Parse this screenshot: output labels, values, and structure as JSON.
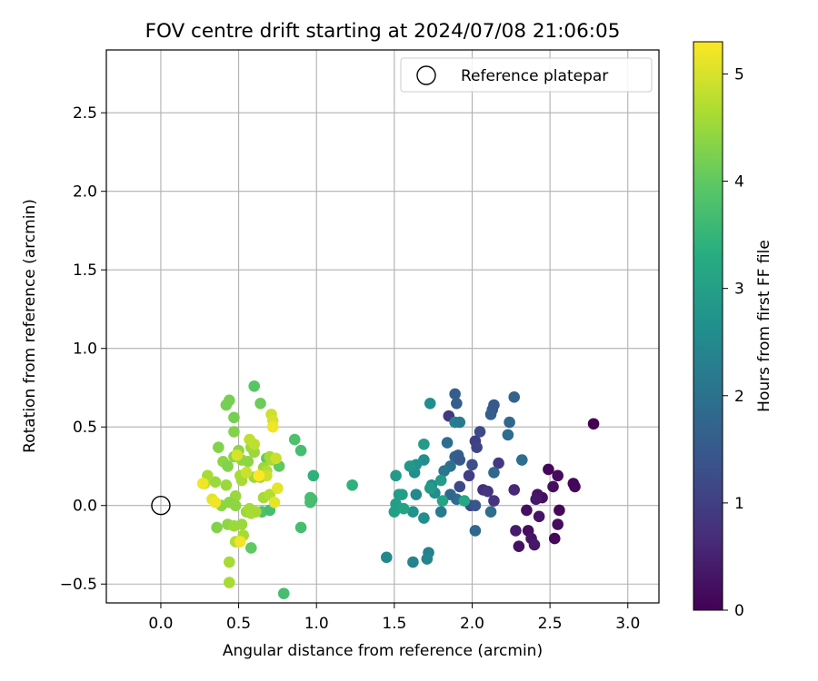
{
  "chart_data": {
    "type": "scatter",
    "title": "FOV centre drift starting at 2024/07/08 21:06:05",
    "xlabel": "Angular distance from reference (arcmin)",
    "ylabel": "Rotation from reference (arcmin)",
    "xlim": [
      -0.35,
      3.2
    ],
    "ylim": [
      -0.62,
      2.9
    ],
    "xticks": [
      "0.0",
      "0.5",
      "1.0",
      "1.5",
      "2.0",
      "2.5",
      "3.0"
    ],
    "xtick_values": [
      0.0,
      0.5,
      1.0,
      1.5,
      2.0,
      2.5,
      3.0
    ],
    "yticks": [
      "−0.5",
      "0.0",
      "0.5",
      "1.0",
      "1.5",
      "2.0",
      "2.5"
    ],
    "ytick_values": [
      -0.5,
      0.0,
      0.5,
      1.0,
      1.5,
      2.0,
      2.5
    ],
    "grid": true,
    "legend": {
      "position": "top-right",
      "label": "Reference platepar"
    },
    "reference_point": {
      "x": 0.0,
      "y": 0.0
    },
    "colorbar": {
      "label": "Hours from first FF file",
      "min": 0,
      "max": 5.3,
      "ticks": [
        "0",
        "1",
        "2",
        "3",
        "4",
        "5"
      ],
      "tick_values": [
        0,
        1,
        2,
        3,
        4,
        5
      ],
      "colormap": "viridis"
    },
    "points": [
      {
        "x": 2.78,
        "y": 0.52,
        "c": 0.0
      },
      {
        "x": 2.49,
        "y": 0.23,
        "c": 0.1
      },
      {
        "x": 2.55,
        "y": 0.19,
        "c": 0.15
      },
      {
        "x": 2.65,
        "y": 0.14,
        "c": 0.1
      },
      {
        "x": 2.66,
        "y": 0.12,
        "c": 0.1
      },
      {
        "x": 2.52,
        "y": 0.12,
        "c": 0.2
      },
      {
        "x": 2.45,
        "y": 0.05,
        "c": 0.2
      },
      {
        "x": 2.42,
        "y": 0.07,
        "c": 0.3
      },
      {
        "x": 2.41,
        "y": 0.04,
        "c": 0.35
      },
      {
        "x": 2.56,
        "y": -0.03,
        "c": 0.1
      },
      {
        "x": 2.35,
        "y": -0.03,
        "c": 0.2
      },
      {
        "x": 2.43,
        "y": -0.07,
        "c": 0.3
      },
      {
        "x": 2.55,
        "y": -0.12,
        "c": 0.15
      },
      {
        "x": 2.36,
        "y": -0.16,
        "c": 0.2
      },
      {
        "x": 2.28,
        "y": -0.16,
        "c": 0.4
      },
      {
        "x": 2.38,
        "y": -0.21,
        "c": 0.3
      },
      {
        "x": 2.53,
        "y": -0.21,
        "c": 0.1
      },
      {
        "x": 2.4,
        "y": -0.25,
        "c": 0.35
      },
      {
        "x": 2.3,
        "y": -0.26,
        "c": 0.25
      },
      {
        "x": 2.27,
        "y": 0.1,
        "c": 0.6
      },
      {
        "x": 2.14,
        "y": 0.03,
        "c": 0.8
      },
      {
        "x": 2.07,
        "y": 0.1,
        "c": 0.7
      },
      {
        "x": 2.1,
        "y": 0.09,
        "c": 0.8
      },
      {
        "x": 2.17,
        "y": 0.27,
        "c": 0.9
      },
      {
        "x": 2.02,
        "y": 0.41,
        "c": 1.0
      },
      {
        "x": 2.03,
        "y": 0.37,
        "c": 1.1
      },
      {
        "x": 1.99,
        "y": 0.0,
        "c": 1.2
      },
      {
        "x": 2.02,
        "y": 0.0,
        "c": 1.4
      },
      {
        "x": 1.85,
        "y": 0.57,
        "c": 0.9
      },
      {
        "x": 1.98,
        "y": 0.19,
        "c": 1.0
      },
      {
        "x": 1.92,
        "y": 0.12,
        "c": 1.2
      },
      {
        "x": 2.0,
        "y": 0.26,
        "c": 1.3
      },
      {
        "x": 2.05,
        "y": 0.47,
        "c": 1.2
      },
      {
        "x": 2.14,
        "y": 0.64,
        "c": 1.5
      },
      {
        "x": 2.13,
        "y": 0.61,
        "c": 1.5
      },
      {
        "x": 2.12,
        "y": 0.58,
        "c": 1.6
      },
      {
        "x": 2.27,
        "y": 0.69,
        "c": 1.7
      },
      {
        "x": 2.24,
        "y": 0.53,
        "c": 1.8
      },
      {
        "x": 2.23,
        "y": 0.45,
        "c": 1.9
      },
      {
        "x": 2.32,
        "y": 0.29,
        "c": 1.9
      },
      {
        "x": 2.14,
        "y": 0.21,
        "c": 1.8
      },
      {
        "x": 2.12,
        "y": -0.04,
        "c": 1.9
      },
      {
        "x": 2.02,
        "y": -0.16,
        "c": 1.8
      },
      {
        "x": 1.89,
        "y": 0.71,
        "c": 1.6
      },
      {
        "x": 1.9,
        "y": 0.65,
        "c": 1.6
      },
      {
        "x": 1.89,
        "y": 0.31,
        "c": 1.7
      },
      {
        "x": 1.91,
        "y": 0.32,
        "c": 1.6
      },
      {
        "x": 1.92,
        "y": 0.29,
        "c": 1.5
      },
      {
        "x": 1.84,
        "y": 0.4,
        "c": 1.9
      },
      {
        "x": 1.86,
        "y": 0.25,
        "c": 2.0
      },
      {
        "x": 1.9,
        "y": 0.04,
        "c": 1.9
      },
      {
        "x": 1.86,
        "y": 0.07,
        "c": 1.8
      },
      {
        "x": 1.82,
        "y": 0.22,
        "c": 2.1
      },
      {
        "x": 1.8,
        "y": -0.04,
        "c": 2.2
      },
      {
        "x": 1.89,
        "y": 0.53,
        "c": 2.3
      },
      {
        "x": 1.92,
        "y": 0.53,
        "c": 2.2
      },
      {
        "x": 1.73,
        "y": 0.65,
        "c": 2.6
      },
      {
        "x": 1.72,
        "y": -0.3,
        "c": 2.3
      },
      {
        "x": 1.71,
        "y": -0.34,
        "c": 2.4
      },
      {
        "x": 1.62,
        "y": -0.36,
        "c": 2.4
      },
      {
        "x": 1.45,
        "y": -0.33,
        "c": 2.5
      },
      {
        "x": 1.69,
        "y": -0.08,
        "c": 2.6
      },
      {
        "x": 1.62,
        "y": -0.04,
        "c": 2.7
      },
      {
        "x": 1.64,
        "y": 0.07,
        "c": 2.5
      },
      {
        "x": 1.74,
        "y": 0.13,
        "c": 2.6
      },
      {
        "x": 1.76,
        "y": 0.08,
        "c": 2.6
      },
      {
        "x": 1.69,
        "y": 0.29,
        "c": 2.6
      },
      {
        "x": 1.63,
        "y": 0.21,
        "c": 2.6
      },
      {
        "x": 1.64,
        "y": 0.26,
        "c": 2.7
      },
      {
        "x": 1.6,
        "y": 0.25,
        "c": 2.8
      },
      {
        "x": 1.69,
        "y": 0.39,
        "c": 2.9
      },
      {
        "x": 1.73,
        "y": 0.11,
        "c": 2.9
      },
      {
        "x": 1.8,
        "y": 0.16,
        "c": 2.9
      },
      {
        "x": 1.81,
        "y": 0.03,
        "c": 3.1
      },
      {
        "x": 1.51,
        "y": 0.19,
        "c": 2.9
      },
      {
        "x": 1.53,
        "y": 0.07,
        "c": 2.9
      },
      {
        "x": 1.55,
        "y": 0.07,
        "c": 3.0
      },
      {
        "x": 1.51,
        "y": 0.01,
        "c": 3.0
      },
      {
        "x": 1.5,
        "y": -0.04,
        "c": 3.0
      },
      {
        "x": 1.56,
        "y": -0.02,
        "c": 3.1
      },
      {
        "x": 1.95,
        "y": 0.03,
        "c": 3.2
      },
      {
        "x": 1.23,
        "y": 0.13,
        "c": 3.4
      },
      {
        "x": 0.98,
        "y": 0.19,
        "c": 3.4
      },
      {
        "x": 0.97,
        "y": 0.04,
        "c": 3.6
      },
      {
        "x": 0.96,
        "y": 0.02,
        "c": 3.7
      },
      {
        "x": 0.96,
        "y": 0.05,
        "c": 3.7
      },
      {
        "x": 0.9,
        "y": 0.35,
        "c": 3.7
      },
      {
        "x": 0.86,
        "y": 0.42,
        "c": 3.8
      },
      {
        "x": 0.9,
        "y": -0.14,
        "c": 3.7
      },
      {
        "x": 0.79,
        "y": -0.56,
        "c": 3.7
      },
      {
        "x": 0.6,
        "y": 0.76,
        "c": 3.9
      },
      {
        "x": 0.65,
        "y": -0.04,
        "c": 3.8
      },
      {
        "x": 0.7,
        "y": -0.03,
        "c": 3.7
      },
      {
        "x": 0.76,
        "y": 0.25,
        "c": 4.0
      },
      {
        "x": 0.68,
        "y": 0.3,
        "c": 4.0
      },
      {
        "x": 0.58,
        "y": -0.27,
        "c": 4.0
      },
      {
        "x": 0.64,
        "y": 0.65,
        "c": 4.1
      },
      {
        "x": 0.44,
        "y": 0.67,
        "c": 4.2
      },
      {
        "x": 0.42,
        "y": 0.64,
        "c": 4.2
      },
      {
        "x": 0.47,
        "y": 0.56,
        "c": 4.2
      },
      {
        "x": 0.47,
        "y": 0.47,
        "c": 4.3
      },
      {
        "x": 0.37,
        "y": 0.37,
        "c": 4.3
      },
      {
        "x": 0.4,
        "y": 0.28,
        "c": 4.4
      },
      {
        "x": 0.43,
        "y": 0.25,
        "c": 4.3
      },
      {
        "x": 0.5,
        "y": 0.35,
        "c": 4.4
      },
      {
        "x": 0.47,
        "y": 0.31,
        "c": 4.4
      },
      {
        "x": 0.52,
        "y": 0.29,
        "c": 4.4
      },
      {
        "x": 0.56,
        "y": 0.28,
        "c": 4.4
      },
      {
        "x": 0.58,
        "y": 0.37,
        "c": 4.5
      },
      {
        "x": 0.6,
        "y": 0.34,
        "c": 4.5
      },
      {
        "x": 0.66,
        "y": 0.24,
        "c": 4.5
      },
      {
        "x": 0.7,
        "y": 0.31,
        "c": 4.6
      },
      {
        "x": 0.71,
        "y": 0.29,
        "c": 4.6
      },
      {
        "x": 0.6,
        "y": 0.18,
        "c": 4.5
      },
      {
        "x": 0.64,
        "y": 0.18,
        "c": 4.5
      },
      {
        "x": 0.51,
        "y": 0.19,
        "c": 4.6
      },
      {
        "x": 0.52,
        "y": 0.16,
        "c": 4.6
      },
      {
        "x": 0.42,
        "y": 0.13,
        "c": 4.5
      },
      {
        "x": 0.35,
        "y": 0.15,
        "c": 4.5
      },
      {
        "x": 0.3,
        "y": 0.19,
        "c": 4.6
      },
      {
        "x": 0.28,
        "y": 0.14,
        "c": 4.7
      },
      {
        "x": 0.48,
        "y": 0.06,
        "c": 4.5
      },
      {
        "x": 0.48,
        "y": 0.0,
        "c": 4.4
      },
      {
        "x": 0.44,
        "y": 0.02,
        "c": 4.4
      },
      {
        "x": 0.39,
        "y": 0.0,
        "c": 4.4
      },
      {
        "x": 0.36,
        "y": -0.14,
        "c": 4.3
      },
      {
        "x": 0.43,
        "y": -0.12,
        "c": 4.4
      },
      {
        "x": 0.47,
        "y": -0.13,
        "c": 4.5
      },
      {
        "x": 0.52,
        "y": -0.12,
        "c": 4.5
      },
      {
        "x": 0.55,
        "y": -0.04,
        "c": 4.5
      },
      {
        "x": 0.58,
        "y": -0.05,
        "c": 4.6
      },
      {
        "x": 0.61,
        "y": -0.04,
        "c": 4.6
      },
      {
        "x": 0.57,
        "y": -0.02,
        "c": 4.6
      },
      {
        "x": 0.53,
        "y": -0.19,
        "c": 4.6
      },
      {
        "x": 0.48,
        "y": -0.23,
        "c": 4.7
      },
      {
        "x": 0.44,
        "y": -0.36,
        "c": 4.6
      },
      {
        "x": 0.44,
        "y": -0.49,
        "c": 4.6
      },
      {
        "x": 0.66,
        "y": 0.05,
        "c": 4.6
      },
      {
        "x": 0.7,
        "y": 0.07,
        "c": 4.7
      },
      {
        "x": 0.68,
        "y": 0.22,
        "c": 4.7
      },
      {
        "x": 0.57,
        "y": 0.42,
        "c": 4.8
      },
      {
        "x": 0.6,
        "y": 0.39,
        "c": 4.8
      },
      {
        "x": 0.71,
        "y": 0.58,
        "c": 4.9
      },
      {
        "x": 0.72,
        "y": 0.54,
        "c": 5.0
      },
      {
        "x": 0.72,
        "y": 0.5,
        "c": 5.2
      },
      {
        "x": 0.74,
        "y": 0.3,
        "c": 4.9
      },
      {
        "x": 0.68,
        "y": 0.19,
        "c": 4.9
      },
      {
        "x": 0.75,
        "y": 0.11,
        "c": 5.1
      },
      {
        "x": 0.73,
        "y": 0.02,
        "c": 5.1
      },
      {
        "x": 0.55,
        "y": 0.21,
        "c": 4.9
      },
      {
        "x": 0.49,
        "y": 0.32,
        "c": 5.0
      },
      {
        "x": 0.33,
        "y": 0.04,
        "c": 5.1
      },
      {
        "x": 0.35,
        "y": 0.02,
        "c": 5.2
      },
      {
        "x": 0.27,
        "y": 0.14,
        "c": 5.2
      },
      {
        "x": 0.51,
        "y": -0.23,
        "c": 5.2
      },
      {
        "x": 0.63,
        "y": 0.19,
        "c": 5.3
      }
    ]
  }
}
